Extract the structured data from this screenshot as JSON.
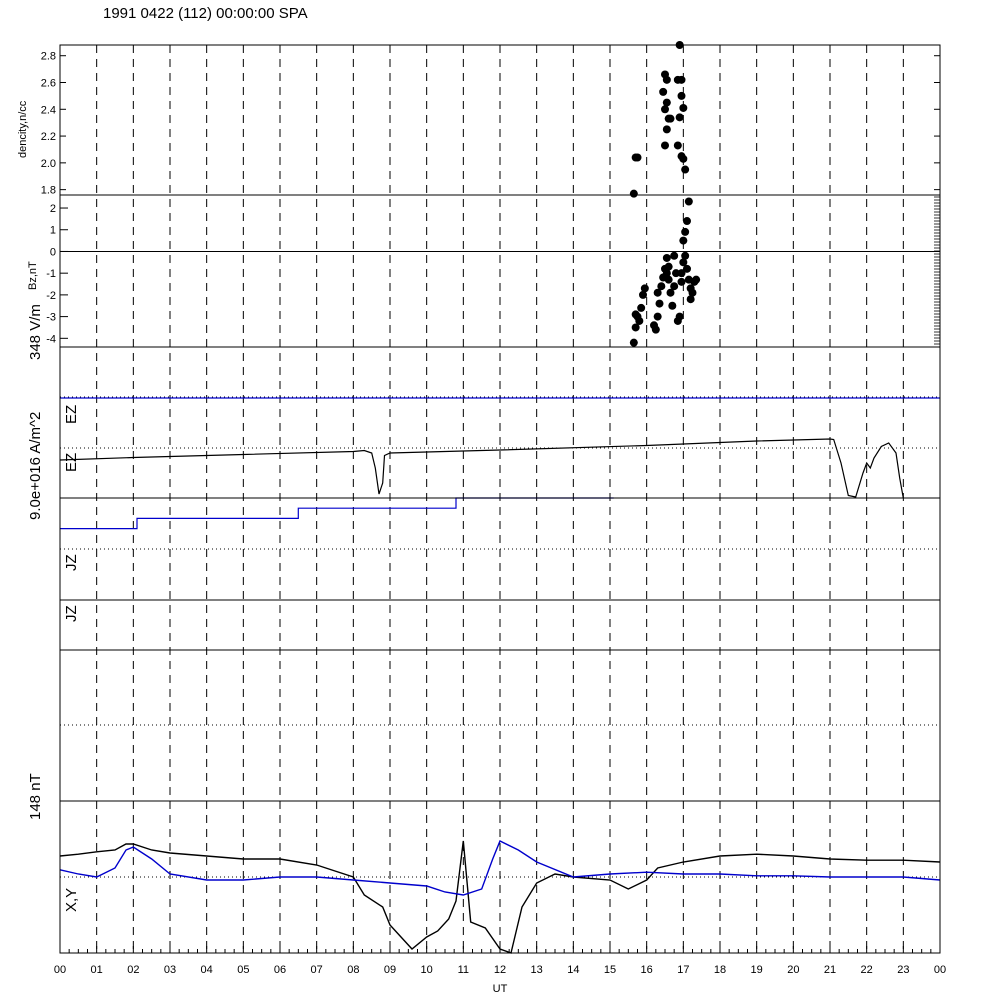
{
  "title": "1991 0422 (112) 00:00:00 SPA",
  "colors": {
    "axis": "#000000",
    "series_black": "#000000",
    "series_blue": "#0000cc",
    "dotted": "#000000"
  },
  "chart_data": [
    {
      "type": "scatter",
      "panel": "density",
      "ylabel": "dencity,n/cc",
      "ylim": [
        1.76,
        2.88
      ],
      "yticks": [
        "1.8",
        "2.0",
        "2.2",
        "2.4",
        "2.6",
        "2.8"
      ],
      "yticks_values": [
        1.8,
        2.0,
        2.2,
        2.4,
        2.6,
        2.8
      ],
      "points": [
        [
          15.7,
          2.04
        ],
        [
          15.75,
          2.04
        ],
        [
          15.65,
          1.77
        ],
        [
          16.5,
          2.66
        ],
        [
          16.55,
          2.62
        ],
        [
          16.45,
          2.53
        ],
        [
          16.55,
          2.45
        ],
        [
          16.5,
          2.4
        ],
        [
          16.6,
          2.33
        ],
        [
          16.65,
          2.33
        ],
        [
          16.55,
          2.25
        ],
        [
          16.5,
          2.13
        ],
        [
          16.9,
          2.88
        ],
        [
          16.95,
          2.62
        ],
        [
          16.85,
          2.62
        ],
        [
          16.95,
          2.5
        ],
        [
          17.0,
          2.41
        ],
        [
          16.9,
          2.34
        ],
        [
          16.85,
          2.13
        ],
        [
          16.95,
          2.05
        ],
        [
          17.0,
          2.03
        ],
        [
          17.05,
          1.95
        ]
      ]
    },
    {
      "type": "scatter",
      "panel": "bz",
      "ylabel": "Bz,nT",
      "ylim": [
        -4.4,
        2.6
      ],
      "yticks": [
        "-4",
        "-3",
        "-2",
        "-1",
        "0",
        "1",
        "2"
      ],
      "yticks_values": [
        -4,
        -3,
        -2,
        -1,
        0,
        1,
        2
      ],
      "zero_line": true,
      "points": [
        [
          15.65,
          -4.2
        ],
        [
          15.7,
          -3.5
        ],
        [
          15.75,
          -3.0
        ],
        [
          15.8,
          -3.2
        ],
        [
          15.85,
          -2.6
        ],
        [
          15.9,
          -2.0
        ],
        [
          15.95,
          -1.7
        ],
        [
          15.7,
          -2.9
        ],
        [
          16.2,
          -3.4
        ],
        [
          16.25,
          -3.6
        ],
        [
          16.3,
          -3.0
        ],
        [
          16.35,
          -2.4
        ],
        [
          16.3,
          -1.9
        ],
        [
          16.4,
          -1.6
        ],
        [
          16.45,
          -1.2
        ],
        [
          16.5,
          -0.8
        ],
        [
          16.55,
          -0.3
        ],
        [
          16.55,
          -1.0
        ],
        [
          16.6,
          -1.3
        ],
        [
          16.65,
          -1.9
        ],
        [
          16.7,
          -2.5
        ],
        [
          16.75,
          -1.6
        ],
        [
          16.8,
          -1.0
        ],
        [
          16.85,
          -3.2
        ],
        [
          16.9,
          -3.0
        ],
        [
          16.95,
          -1.4
        ],
        [
          17.0,
          -0.5
        ],
        [
          17.0,
          0.5
        ],
        [
          17.05,
          0.9
        ],
        [
          17.1,
          1.4
        ],
        [
          17.15,
          2.3
        ],
        [
          17.05,
          -0.2
        ],
        [
          17.1,
          -0.8
        ],
        [
          17.15,
          -1.3
        ],
        [
          17.2,
          -1.7
        ],
        [
          17.25,
          -1.9
        ],
        [
          17.3,
          -1.4
        ],
        [
          17.35,
          -1.3
        ],
        [
          17.2,
          -2.2
        ],
        [
          16.75,
          -0.2
        ],
        [
          16.6,
          -0.7
        ],
        [
          16.95,
          -1.0
        ]
      ]
    },
    {
      "type": "line",
      "panel": "ez",
      "ylabel": "EZ",
      "scale_label": "348 V/m",
      "series": [
        {
          "color": "black",
          "points": [
            [
              0,
              0.76
            ],
            [
              2,
              0.81
            ],
            [
              5,
              0.87
            ],
            [
              8,
              0.93
            ],
            [
              8.3,
              0.95
            ],
            [
              8.5,
              0.9
            ],
            [
              8.6,
              0.6
            ],
            [
              8.7,
              0.08
            ],
            [
              8.8,
              0.3
            ],
            [
              8.85,
              0.85
            ],
            [
              9.0,
              0.9
            ],
            [
              12,
              0.96
            ],
            [
              16,
              1.05
            ],
            [
              19,
              1.14
            ],
            [
              21,
              1.18
            ],
            [
              21.1,
              1.17
            ],
            [
              21.3,
              0.7
            ],
            [
              21.5,
              0.05
            ],
            [
              21.7,
              0.02
            ],
            [
              21.9,
              0.5
            ],
            [
              22.0,
              0.7
            ],
            [
              22.1,
              0.6
            ],
            [
              22.2,
              0.8
            ],
            [
              22.4,
              1.03
            ],
            [
              22.6,
              1.1
            ],
            [
              22.8,
              0.9
            ],
            [
              22.9,
              0.4
            ],
            [
              23.0,
              0.0
            ]
          ]
        },
        {
          "color": "blue",
          "points": [
            [
              0,
              2.0
            ],
            [
              24,
              2.0
            ]
          ]
        }
      ]
    },
    {
      "type": "line",
      "panel": "jz",
      "ylabel": "JZ",
      "scale_label": "9.0e+016 A/m^2",
      "series": [
        {
          "color": "blue",
          "step": true,
          "points": [
            [
              0,
              1.4
            ],
            [
              2.1,
              1.4
            ],
            [
              2.1,
              1.6
            ],
            [
              6.5,
              1.6
            ],
            [
              6.5,
              1.8
            ],
            [
              10.8,
              1.8
            ],
            [
              10.8,
              2.0
            ],
            [
              15.1,
              2.0
            ]
          ]
        },
        {
          "color": "black",
          "points": [
            [
              0,
              0
            ],
            [
              24,
              0
            ]
          ]
        }
      ]
    },
    {
      "type": "line",
      "panel": "xy",
      "ylabel": "X,Y",
      "scale_label": "148 nT",
      "series": [
        {
          "color": "black",
          "points": [
            [
              0,
              0.35
            ],
            [
              0.5,
              0.38
            ],
            [
              1.0,
              0.42
            ],
            [
              1.5,
              0.45
            ],
            [
              1.8,
              0.55
            ],
            [
              2.0,
              0.55
            ],
            [
              2.5,
              0.45
            ],
            [
              3.0,
              0.4
            ],
            [
              4.0,
              0.35
            ],
            [
              5.0,
              0.3
            ],
            [
              6.0,
              0.3
            ],
            [
              7.0,
              0.2
            ],
            [
              7.5,
              0.1
            ],
            [
              8.0,
              0.0
            ],
            [
              8.3,
              -0.3
            ],
            [
              8.8,
              -0.5
            ],
            [
              9.0,
              -0.8
            ],
            [
              9.3,
              -1.0
            ],
            [
              9.6,
              -1.2
            ],
            [
              10.0,
              -1.0
            ],
            [
              10.3,
              -0.9
            ],
            [
              10.6,
              -0.7
            ],
            [
              10.8,
              -0.4
            ],
            [
              11.0,
              0.6
            ],
            [
              11.2,
              -0.75
            ],
            [
              11.6,
              -0.85
            ],
            [
              12.0,
              -1.2
            ],
            [
              12.3,
              -1.4
            ],
            [
              12.6,
              -0.5
            ],
            [
              13.0,
              -0.1
            ],
            [
              13.5,
              0.05
            ],
            [
              14.0,
              0.0
            ],
            [
              15.0,
              -0.05
            ],
            [
              15.5,
              -0.2
            ],
            [
              16.0,
              -0.05
            ],
            [
              16.3,
              0.15
            ],
            [
              17.0,
              0.25
            ],
            [
              18.0,
              0.35
            ],
            [
              19.0,
              0.38
            ],
            [
              20.0,
              0.35
            ],
            [
              21.0,
              0.3
            ],
            [
              22.0,
              0.28
            ],
            [
              23.0,
              0.28
            ],
            [
              24.0,
              0.25
            ]
          ]
        },
        {
          "color": "blue",
          "points": [
            [
              0,
              0.12
            ],
            [
              0.5,
              0.05
            ],
            [
              1.0,
              0.0
            ],
            [
              1.5,
              0.15
            ],
            [
              1.8,
              0.45
            ],
            [
              2.0,
              0.5
            ],
            [
              2.5,
              0.3
            ],
            [
              3.0,
              0.05
            ],
            [
              4.0,
              -0.05
            ],
            [
              5.0,
              -0.05
            ],
            [
              6.0,
              0.0
            ],
            [
              7.0,
              0.0
            ],
            [
              8.0,
              -0.05
            ],
            [
              9.0,
              -0.1
            ],
            [
              10.0,
              -0.15
            ],
            [
              10.5,
              -0.25
            ],
            [
              11.0,
              -0.3
            ],
            [
              11.5,
              -0.2
            ],
            [
              11.8,
              0.3
            ],
            [
              12.0,
              0.6
            ],
            [
              12.5,
              0.45
            ],
            [
              13.0,
              0.25
            ],
            [
              14.0,
              0.0
            ],
            [
              15.0,
              0.05
            ],
            [
              16.0,
              0.08
            ],
            [
              17.0,
              0.05
            ],
            [
              18.0,
              0.05
            ],
            [
              19.0,
              0.02
            ],
            [
              20.0,
              0.02
            ],
            [
              21.0,
              0.0
            ],
            [
              22.0,
              0.0
            ],
            [
              23.0,
              0.0
            ],
            [
              24.0,
              -0.05
            ]
          ]
        }
      ]
    }
  ],
  "x_axis": {
    "label": "UT",
    "ticks": [
      "00",
      "01",
      "02",
      "03",
      "04",
      "05",
      "06",
      "07",
      "08",
      "09",
      "10",
      "11",
      "12",
      "13",
      "14",
      "15",
      "16",
      "17",
      "18",
      "19",
      "20",
      "21",
      "22",
      "23",
      "00"
    ],
    "range": [
      0,
      24
    ]
  },
  "labels": {
    "density": "dencity,n/cc",
    "bz": "Bz,nT",
    "ez_a": "EZ",
    "ez_b": "EZ",
    "scale_ez": "348 V/m",
    "scale_jz": "9.0e+016 A/m^2",
    "jz_a": "JZ",
    "jz_b": "JZ",
    "scale_xy": "148 nT",
    "xy": "X,Y"
  }
}
